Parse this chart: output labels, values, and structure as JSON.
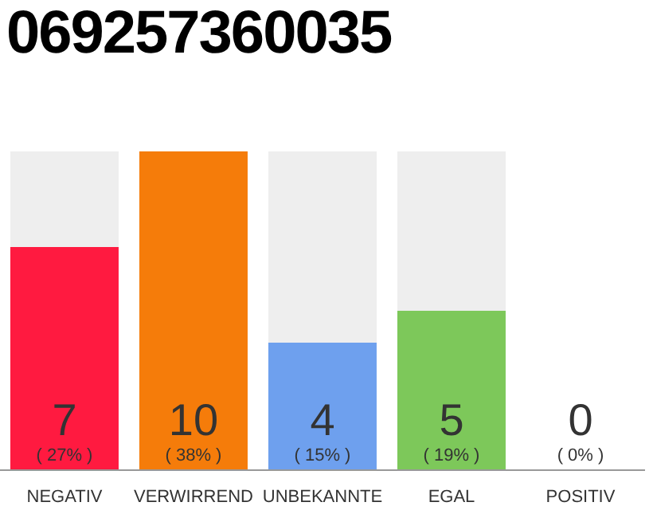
{
  "chart_data": {
    "type": "bar",
    "title": "069257360035",
    "categories": [
      "NEGATIV",
      "VERWIRREND",
      "UNBEKANNTE",
      "EGAL",
      "POSITIV"
    ],
    "values": [
      7,
      10,
      4,
      5,
      0
    ],
    "colors": [
      "#ff1a40",
      "#f57c0a",
      "#6ea0ee",
      "#7dc85a",
      "#cccccc"
    ],
    "value_labels": [
      "7\n( 27% )",
      "10\n( 38% )",
      "4\n( 15% )",
      "5\n( 19% )",
      "0\n( 0% )"
    ]
  }
}
